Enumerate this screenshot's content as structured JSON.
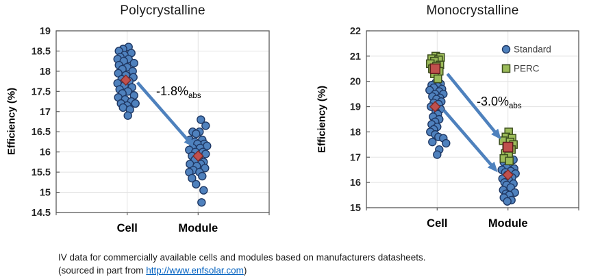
{
  "chart_data": [
    {
      "type": "scatter",
      "title": "Polycrystalline",
      "ylabel": "Efficiency (%)",
      "ylim": [
        14.5,
        19
      ],
      "ystep": 0.5,
      "categories": [
        "Cell",
        "Module"
      ],
      "grid": true,
      "colors": {
        "standard_fill": "#4F81BD",
        "standard_stroke": "#1F3864",
        "mean_fill": "#C0504D",
        "mean_stroke": "#7F2B28",
        "arrow": "#4E81BD"
      },
      "series": [
        {
          "name": "Standard",
          "marker": "circle",
          "fill": "#4F81BD",
          "stroke": "#1F3864",
          "points": {
            "Cell": [
              [
                18.6,
                2
              ],
              [
                18.55,
                -6
              ],
              [
                18.5,
                -12
              ],
              [
                18.45,
                6
              ],
              [
                18.4,
                -4
              ],
              [
                18.35,
                -10
              ],
              [
                18.3,
                2
              ],
              [
                18.3,
                -14
              ],
              [
                18.25,
                -5
              ],
              [
                18.2,
                10
              ],
              [
                18.15,
                -12
              ],
              [
                18.1,
                0
              ],
              [
                18.05,
                -7
              ],
              [
                18.0,
                8
              ],
              [
                17.95,
                -13
              ],
              [
                17.9,
                -2
              ],
              [
                17.85,
                9
              ],
              [
                17.8,
                -8
              ],
              [
                17.75,
                3
              ],
              [
                17.7,
                -14
              ],
              [
                17.65,
                -4
              ],
              [
                17.6,
                7
              ],
              [
                17.55,
                -11
              ],
              [
                17.5,
                1
              ],
              [
                17.45,
                -7
              ],
              [
                17.4,
                10
              ],
              [
                17.35,
                -13
              ],
              [
                17.3,
                -3
              ],
              [
                17.25,
                6
              ],
              [
                17.2,
                -9
              ],
              [
                17.2,
                12
              ],
              [
                17.15,
                0
              ],
              [
                17.1,
                -6
              ],
              [
                17.05,
                4
              ],
              [
                16.9,
                1
              ]
            ],
            "Module": [
              [
                16.8,
                4
              ],
              [
                16.65,
                11
              ],
              [
                16.5,
                -8
              ],
              [
                16.5,
                2
              ],
              [
                16.45,
                -3
              ],
              [
                16.3,
                -12
              ],
              [
                16.3,
                6
              ],
              [
                16.25,
                -5
              ],
              [
                16.2,
                9
              ],
              [
                16.2,
                -1
              ],
              [
                16.15,
                13
              ],
              [
                16.1,
                -8
              ],
              [
                16.1,
                3
              ],
              [
                16.05,
                -13
              ],
              [
                16.0,
                7
              ],
              [
                16.0,
                -4
              ],
              [
                15.95,
                11
              ],
              [
                15.9,
                -9
              ],
              [
                15.85,
                1
              ],
              [
                15.8,
                -5
              ],
              [
                15.75,
                8
              ],
              [
                15.7,
                -12
              ],
              [
                15.7,
                4
              ],
              [
                15.65,
                -2
              ],
              [
                15.6,
                10
              ],
              [
                15.55,
                -7
              ],
              [
                15.5,
                2
              ],
              [
                15.5,
                -13
              ],
              [
                15.4,
                6
              ],
              [
                15.35,
                -9
              ],
              [
                15.2,
                -3
              ],
              [
                15.05,
                8
              ],
              [
                14.75,
                5
              ]
            ]
          }
        }
      ],
      "means": [
        {
          "marker": "diamond",
          "category": "Cell",
          "value": 17.78,
          "dx": -2,
          "size": 13,
          "fill": "#C0504D",
          "stroke": "#7F2B28"
        },
        {
          "marker": "diamond",
          "category": "Module",
          "value": 15.9,
          "dx": 0,
          "size": 13,
          "fill": "#C0504D",
          "stroke": "#7F2B28"
        }
      ],
      "arrows": [
        {
          "from": {
            "category": "Cell",
            "dx": 15,
            "value": 17.72
          },
          "to": {
            "category": "Module",
            "dx": -6,
            "value": 16.12
          }
        }
      ],
      "annotations": [
        {
          "text": "-1.8%",
          "subscript": "abs",
          "x": 228,
          "y": 139
        }
      ],
      "legend": null
    },
    {
      "type": "scatter",
      "title": "Monocrystalline",
      "ylabel": "Efficiency (%)",
      "ylim": [
        15,
        22
      ],
      "ystep": 1,
      "categories": [
        "Cell",
        "Module"
      ],
      "grid": true,
      "colors": {
        "standard_fill": "#4F81BD",
        "standard_stroke": "#1F3864",
        "perc_fill": "#9BBB59",
        "perc_stroke": "#3C4E1E",
        "mean_fill": "#C0504D",
        "mean_stroke": "#7F2B28",
        "arrow": "#4E81BD"
      },
      "series": [
        {
          "name": "Standard",
          "marker": "circle",
          "fill": "#4F81BD",
          "stroke": "#1F3864",
          "points": {
            "Cell": [
              [
                19.95,
                -2
              ],
              [
                19.9,
                5
              ],
              [
                19.85,
                -8
              ],
              [
                19.8,
                1
              ],
              [
                19.75,
                -5
              ],
              [
                19.7,
                7
              ],
              [
                19.65,
                -11
              ],
              [
                19.6,
                3
              ],
              [
                19.5,
                -3
              ],
              [
                19.5,
                9
              ],
              [
                19.4,
                -7
              ],
              [
                19.35,
                4
              ],
              [
                19.3,
                -1
              ],
              [
                19.2,
                6
              ],
              [
                19.15,
                -5
              ],
              [
                19.1,
                2
              ],
              [
                19.0,
                -9
              ],
              [
                18.9,
                5
              ],
              [
                18.8,
                -2
              ],
              [
                18.7,
                1
              ],
              [
                18.6,
                -6
              ],
              [
                18.5,
                3
              ],
              [
                18.4,
                -3
              ],
              [
                18.3,
                -8
              ],
              [
                18.2,
                0
              ],
              [
                18.1,
                -5
              ],
              [
                18.0,
                -10
              ],
              [
                17.9,
                -3
              ],
              [
                17.8,
                2
              ],
              [
                17.75,
                9
              ],
              [
                17.6,
                -7
              ],
              [
                17.55,
                13
              ],
              [
                17.3,
                3
              ],
              [
                17.1,
                0
              ]
            ],
            "Module": [
              [
                16.9,
                8
              ],
              [
                16.8,
                -6
              ],
              [
                16.75,
                2
              ],
              [
                16.6,
                -2
              ],
              [
                16.55,
                9
              ],
              [
                16.5,
                -9
              ],
              [
                16.45,
                4
              ],
              [
                16.4,
                -4
              ],
              [
                16.35,
                11
              ],
              [
                16.3,
                -1
              ],
              [
                16.2,
                6
              ],
              [
                16.15,
                -8
              ],
              [
                16.1,
                1
              ],
              [
                16.0,
                -5
              ],
              [
                15.95,
                8
              ],
              [
                15.9,
                -2
              ],
              [
                15.8,
                4
              ],
              [
                15.7,
                -7
              ],
              [
                15.6,
                10
              ],
              [
                15.55,
                -3
              ],
              [
                15.5,
                2
              ],
              [
                15.4,
                -6
              ],
              [
                15.3,
                5
              ],
              [
                15.25,
                -1
              ]
            ]
          }
        },
        {
          "name": "PERC",
          "marker": "square",
          "fill": "#9BBB59",
          "stroke": "#3C4E1E",
          "points": {
            "Cell": [
              [
                21.0,
                -2
              ],
              [
                20.95,
                5
              ],
              [
                20.9,
                -8
              ],
              [
                20.85,
                2
              ],
              [
                20.8,
                -4
              ],
              [
                20.7,
                -10
              ],
              [
                20.65,
                4
              ],
              [
                20.6,
                -1
              ],
              [
                20.5,
                -7
              ],
              [
                20.4,
                3
              ],
              [
                20.3,
                -4
              ],
              [
                20.1,
                1
              ]
            ],
            "Module": [
              [
                18.0,
                1
              ],
              [
                17.8,
                -3
              ],
              [
                17.75,
                6
              ],
              [
                17.65,
                -7
              ],
              [
                17.6,
                3
              ],
              [
                17.5,
                8
              ],
              [
                17.4,
                -2
              ],
              [
                17.3,
                5
              ],
              [
                17.15,
                -4
              ],
              [
                17.05,
                1
              ],
              [
                16.95,
                -6
              ],
              [
                16.85,
                2
              ]
            ]
          }
        }
      ],
      "means": [
        {
          "marker": "square",
          "category": "Cell",
          "value": 20.5,
          "dx": -3,
          "size": 14,
          "fill": "#C0504D",
          "stroke": "#5B1F1C"
        },
        {
          "marker": "diamond",
          "category": "Cell",
          "value": 19.0,
          "dx": -3,
          "size": 13,
          "fill": "#C0504D",
          "stroke": "#7F2B28"
        },
        {
          "marker": "square",
          "category": "Module",
          "value": 17.4,
          "dx": 0,
          "size": 14,
          "fill": "#C0504D",
          "stroke": "#5B1F1C"
        },
        {
          "marker": "diamond",
          "category": "Module",
          "value": 16.3,
          "dx": 0,
          "size": 13,
          "fill": "#C0504D",
          "stroke": "#7F2B28"
        }
      ],
      "arrows": [
        {
          "from": {
            "category": "Cell",
            "dx": 15,
            "value": 20.3
          },
          "to": {
            "category": "Module",
            "dx": -10,
            "value": 17.7
          }
        },
        {
          "from": {
            "category": "Cell",
            "dx": 10,
            "value": 18.85
          },
          "to": {
            "category": "Module",
            "dx": -15,
            "value": 16.4
          }
        }
      ],
      "annotations": [
        {
          "text": "-3.0%",
          "subscript": "abs",
          "x": 266,
          "y": 154
        }
      ],
      "legend": {
        "items": [
          {
            "label": "Standard",
            "marker": "circle",
            "fill": "#4F81BD",
            "stroke": "#1F3864"
          },
          {
            "label": "PERC",
            "marker": "square",
            "fill": "#9BBB59",
            "stroke": "#3C4E1E"
          }
        ]
      }
    }
  ],
  "caption": {
    "line1": "IV data for commercially available cells and modules based on manufacturers datasheets.",
    "line2_prefix": "(sourced in part from  ",
    "link_text": "http://www.enfsolar.com",
    "line2_suffix": ")"
  }
}
